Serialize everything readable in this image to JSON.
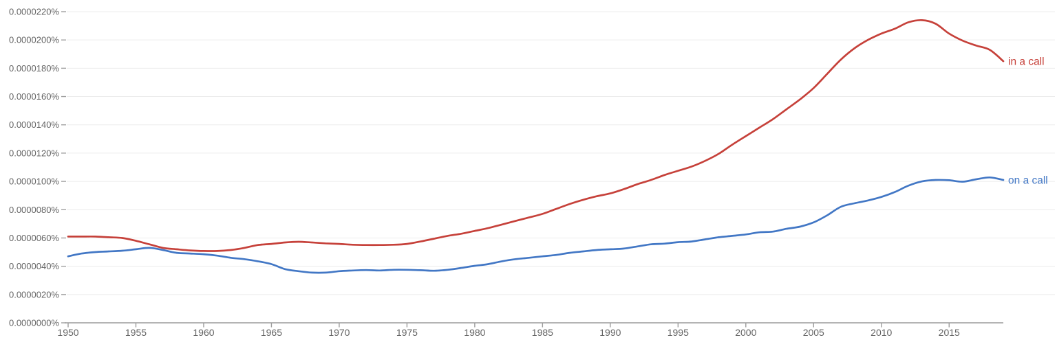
{
  "chart_data": {
    "type": "line",
    "title": "",
    "xlabel": "",
    "ylabel": "",
    "value_unit_note": "series values are in units of 0.0000001% (1e-7 percent of corpus)",
    "x_range": [
      1950,
      2019
    ],
    "ylim_e7": [
      0,
      220
    ],
    "grid": "horizontal",
    "legend_position": "line-end-labels",
    "years": [
      1950,
      1951,
      1952,
      1953,
      1954,
      1955,
      1956,
      1957,
      1958,
      1959,
      1960,
      1961,
      1962,
      1963,
      1964,
      1965,
      1966,
      1967,
      1968,
      1969,
      1970,
      1971,
      1972,
      1973,
      1974,
      1975,
      1976,
      1977,
      1978,
      1979,
      1980,
      1981,
      1982,
      1983,
      1984,
      1985,
      1986,
      1987,
      1988,
      1989,
      1990,
      1991,
      1992,
      1993,
      1994,
      1995,
      1996,
      1997,
      1998,
      1999,
      2000,
      2001,
      2002,
      2003,
      2004,
      2005,
      2006,
      2007,
      2008,
      2009,
      2010,
      2011,
      2012,
      2013,
      2014,
      2015,
      2016,
      2017,
      2018,
      2019
    ],
    "series": [
      {
        "name": "in a call",
        "color": "#c6413a",
        "values_e7": [
          61.0,
          61.0,
          61.0,
          60.5,
          60.0,
          58.0,
          55.5,
          53.0,
          52.0,
          51.2,
          50.8,
          50.8,
          51.5,
          53.0,
          55.0,
          55.8,
          56.8,
          57.3,
          56.8,
          56.2,
          55.8,
          55.2,
          55.0,
          55.0,
          55.2,
          55.8,
          57.5,
          59.5,
          61.5,
          63.0,
          65.0,
          67.0,
          69.5,
          72.0,
          74.5,
          77.0,
          80.5,
          84.0,
          87.0,
          89.5,
          91.5,
          94.5,
          98.0,
          101.0,
          104.5,
          107.5,
          110.5,
          114.5,
          119.5,
          126.0,
          132.0,
          138.0,
          144.0,
          151.0,
          158.0,
          166.0,
          176.0,
          186.0,
          194.0,
          200.0,
          204.5,
          208.0,
          212.5,
          214.0,
          211.5,
          204.5,
          199.5,
          196.0,
          193.0,
          185.0
        ]
      },
      {
        "name": "on a call",
        "color": "#4277c5",
        "values_e7": [
          47.0,
          49.0,
          50.0,
          50.5,
          51.0,
          52.0,
          53.0,
          51.5,
          49.5,
          49.0,
          48.5,
          47.5,
          46.0,
          45.0,
          43.5,
          41.5,
          38.0,
          36.5,
          35.5,
          35.5,
          36.5,
          37.0,
          37.3,
          37.0,
          37.5,
          37.5,
          37.2,
          36.8,
          37.5,
          38.8,
          40.3,
          41.5,
          43.5,
          45.0,
          46.0,
          47.0,
          48.0,
          49.5,
          50.5,
          51.5,
          52.0,
          52.5,
          54.0,
          55.5,
          56.0,
          57.0,
          57.5,
          59.0,
          60.5,
          61.5,
          62.5,
          64.0,
          64.5,
          66.5,
          68.0,
          71.0,
          76.0,
          82.0,
          84.5,
          86.5,
          89.0,
          92.5,
          97.0,
          100.0,
          101.0,
          100.8,
          99.8,
          101.5,
          102.8,
          101.0
        ]
      }
    ],
    "y_axis": {
      "tick_labels": [
        "0.0000220%",
        "0.0000200%",
        "0.0000180%",
        "0.0000160%",
        "0.0000140%",
        "0.0000120%",
        "0.0000100%",
        "0.0000080%",
        "0.0000060%",
        "0.0000040%",
        "0.0000020%",
        "0.0000000%"
      ],
      "tick_values_e7": [
        220,
        200,
        180,
        160,
        140,
        120,
        100,
        80,
        60,
        40,
        20,
        0
      ]
    },
    "x_axis": {
      "tick_labels": [
        "1950",
        "1955",
        "1960",
        "1965",
        "1970",
        "1975",
        "1980",
        "1985",
        "1990",
        "1995",
        "2000",
        "2005",
        "2010",
        "2015"
      ],
      "tick_years": [
        1950,
        1955,
        1960,
        1965,
        1970,
        1975,
        1980,
        1985,
        1990,
        1995,
        2000,
        2005,
        2010,
        2015
      ]
    },
    "colors": {
      "grid_line": "#ececec",
      "axis_line": "#9c9c9c",
      "tick_mark": "#a0a0a0",
      "axis_text": "#636363",
      "background": "#ffffff"
    }
  }
}
